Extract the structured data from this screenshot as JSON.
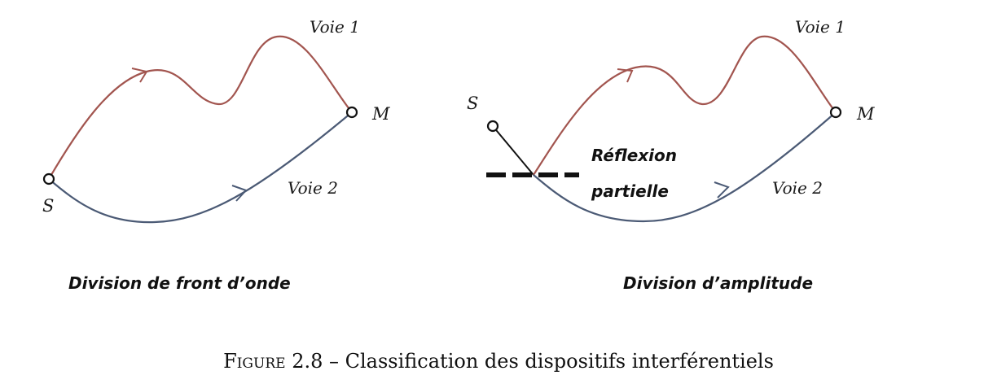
{
  "colors": {
    "voie1": "#a2554f",
    "voie2": "#4b5a75",
    "ink": "#111111"
  },
  "left_diagram": {
    "source_label": "S",
    "target_label": "M",
    "path1_label": "Voie 1",
    "path2_label": "Voie 2",
    "title": "Division de front d’onde"
  },
  "right_diagram": {
    "source_label": "S",
    "target_label": "M",
    "path1_label": "Voie 1",
    "path2_label": "Voie 2",
    "mirror_label_line1": "Réflexion",
    "mirror_label_line2": "partielle",
    "title": "Division d’amplitude"
  },
  "caption": {
    "prefix": "Figure",
    "number": "2.8",
    "separator": "–",
    "text": "Classification des dispositifs interférentiels"
  }
}
